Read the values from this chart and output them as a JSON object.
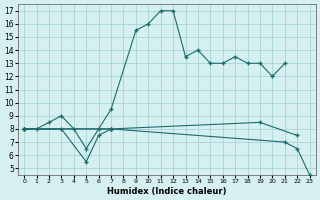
{
  "xlabel": "Humidex (Indice chaleur)",
  "bg_color": "#d6eff0",
  "grid_color": "#a8d5d5",
  "line_color": "#1a6b6b",
  "series1": [
    [
      0,
      8
    ],
    [
      1,
      8
    ],
    [
      2,
      8.5
    ],
    [
      3,
      9
    ],
    [
      4,
      8
    ],
    [
      5,
      6.5
    ],
    [
      6,
      8
    ],
    [
      7,
      9.5
    ],
    [
      9,
      15.5
    ],
    [
      10,
      16
    ],
    [
      11,
      17
    ],
    [
      12,
      17
    ],
    [
      13,
      13.5
    ],
    [
      14,
      14
    ],
    [
      15,
      13
    ],
    [
      16,
      13
    ],
    [
      17,
      13.5
    ],
    [
      18,
      13
    ],
    [
      19,
      13
    ],
    [
      20,
      12
    ],
    [
      21,
      13
    ]
  ],
  "series2": [
    [
      0,
      8
    ],
    [
      3,
      8
    ],
    [
      5,
      5.5
    ],
    [
      6,
      7.5
    ],
    [
      7,
      8
    ]
  ],
  "series3": [
    [
      0,
      8
    ],
    [
      7,
      8
    ],
    [
      19,
      8.5
    ],
    [
      22,
      7.5
    ]
  ],
  "series4": [
    [
      0,
      8
    ],
    [
      7,
      8
    ],
    [
      21,
      7
    ],
    [
      22,
      6.5
    ],
    [
      23,
      4.5
    ]
  ],
  "xlim": [
    -0.5,
    23.5
  ],
  "ylim": [
    4.5,
    17.5
  ],
  "xticks": [
    0,
    1,
    2,
    3,
    4,
    5,
    6,
    7,
    8,
    9,
    10,
    11,
    12,
    13,
    14,
    15,
    16,
    17,
    18,
    19,
    20,
    21,
    22,
    23
  ],
  "yticks": [
    5,
    6,
    7,
    8,
    9,
    10,
    11,
    12,
    13,
    14,
    15,
    16,
    17
  ]
}
